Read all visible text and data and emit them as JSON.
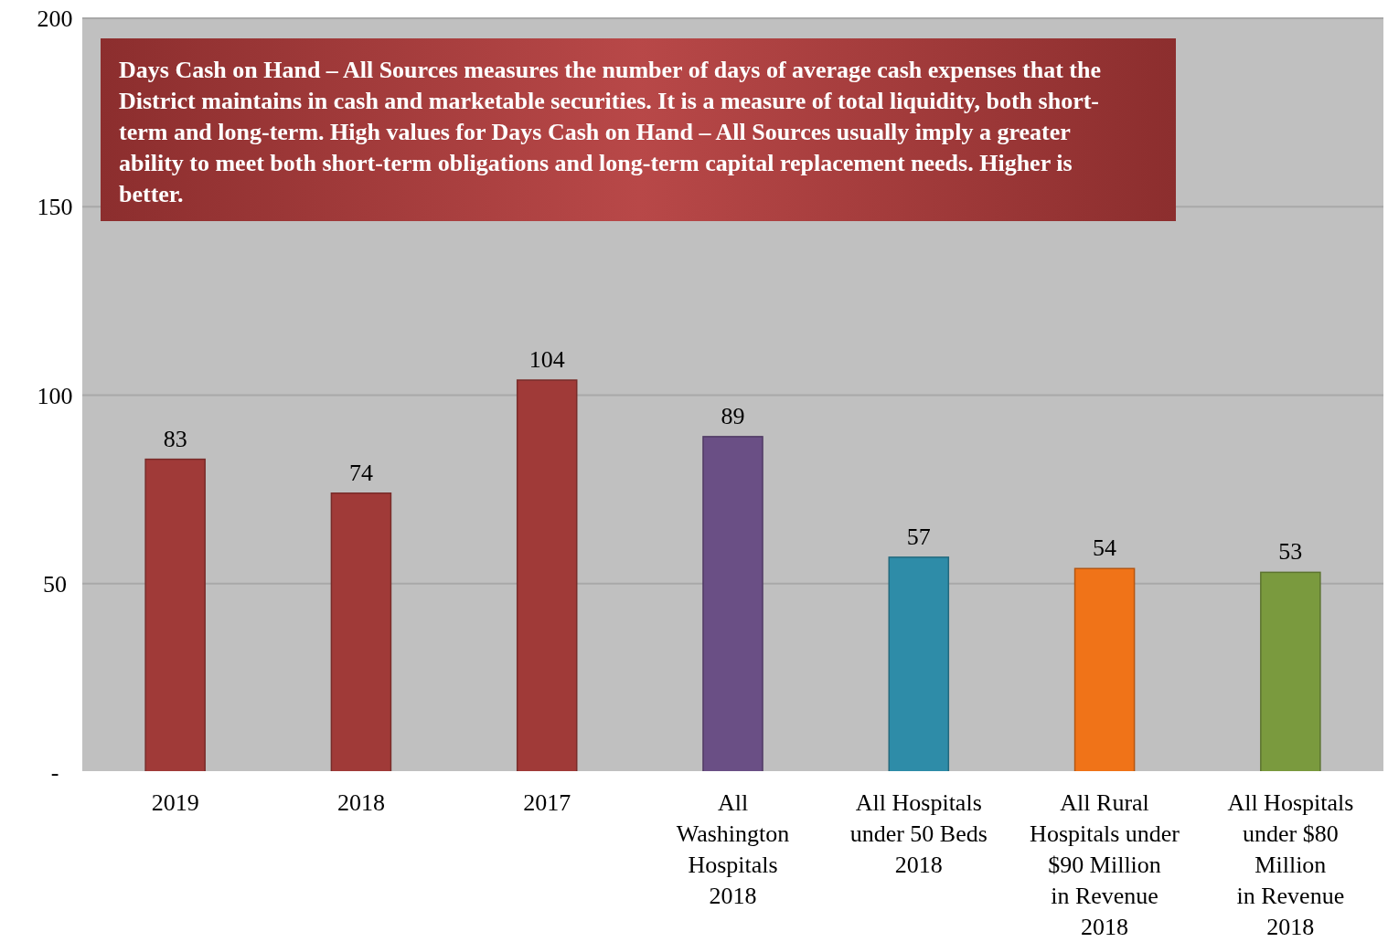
{
  "chart_data": {
    "type": "bar",
    "categories": [
      "2019",
      "2018",
      "2017",
      "All\nWashington\nHospitals\n2018",
      "All Hospitals\nunder 50 Beds\n2018",
      "All Rural\nHospitals under\n$90 Million\nin Revenue\n2018",
      "All Hospitals\nunder $80\nMillion\nin Revenue\n2018"
    ],
    "values": [
      83,
      74,
      104,
      89,
      57,
      54,
      53
    ],
    "colors": [
      "#a03a38",
      "#a03a38",
      "#a03a38",
      "#6a4f85",
      "#2e8ca8",
      "#f07318",
      "#7a9a3e"
    ],
    "ylim": [
      0,
      200
    ],
    "yticks": [
      {
        "value": 0,
        "label": "-"
      },
      50,
      100,
      150,
      200
    ],
    "grid": "y",
    "data_labels": true,
    "annotations": [
      "Days Cash on Hand – All Sources measures the number of days of average cash expenses that the District maintains in cash and marketable securities. It is a measure of total liquidity, both short-term and long-term. High values for Days Cash on Hand – All Sources usually imply a greater ability to meet both short-term obligations and long-term capital replacement needs. Higher is better."
    ]
  }
}
